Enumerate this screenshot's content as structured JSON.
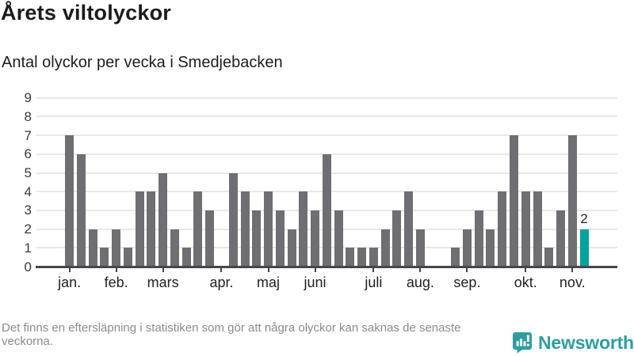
{
  "header": {
    "title": "Årets viltolyckor",
    "subtitle": "Antal olyckor per vecka i Smedjebacken"
  },
  "chart_data": {
    "type": "bar",
    "title": "Årets viltolyckor",
    "subtitle": "Antal olyckor per vecka i Smedjebacken",
    "x_unit": "vecka (week of year, jan–nov)",
    "ylabel": "",
    "xlabel": "",
    "ylim": [
      0,
      9
    ],
    "yticks": [
      0,
      1,
      2,
      3,
      4,
      5,
      6,
      7,
      8,
      9
    ],
    "grid": true,
    "legend": "none",
    "values": [
      7,
      6,
      2,
      1,
      2,
      1,
      4,
      4,
      5,
      2,
      1,
      4,
      3,
      0,
      5,
      4,
      3,
      4,
      3,
      2,
      4,
      3,
      6,
      3,
      1,
      1,
      1,
      2,
      3,
      4,
      2,
      0,
      0,
      1,
      2,
      3,
      2,
      4,
      7,
      4,
      4,
      1,
      3,
      7,
      2
    ],
    "month_ticks": [
      {
        "label": "jan.",
        "week": 1
      },
      {
        "label": "feb.",
        "week": 5
      },
      {
        "label": "mars",
        "week": 9
      },
      {
        "label": "apr.",
        "week": 14
      },
      {
        "label": "maj",
        "week": 18
      },
      {
        "label": "juni",
        "week": 22
      },
      {
        "label": "juli",
        "week": 27
      },
      {
        "label": "aug.",
        "week": 31
      },
      {
        "label": "sep.",
        "week": 35
      },
      {
        "label": "okt.",
        "week": 40
      },
      {
        "label": "nov.",
        "week": 44
      }
    ],
    "bar_color": "#6e6e73",
    "highlight_index": 44,
    "highlight_color": "#00a49a",
    "highlight_value_label": "2"
  },
  "footer": {
    "note": "Det finns en eftersläpning i statistiken som gör att några olyckor kan saknas de senaste veckorna.",
    "brand": "Newsworthy",
    "brand_color": "#2d9ea0"
  }
}
